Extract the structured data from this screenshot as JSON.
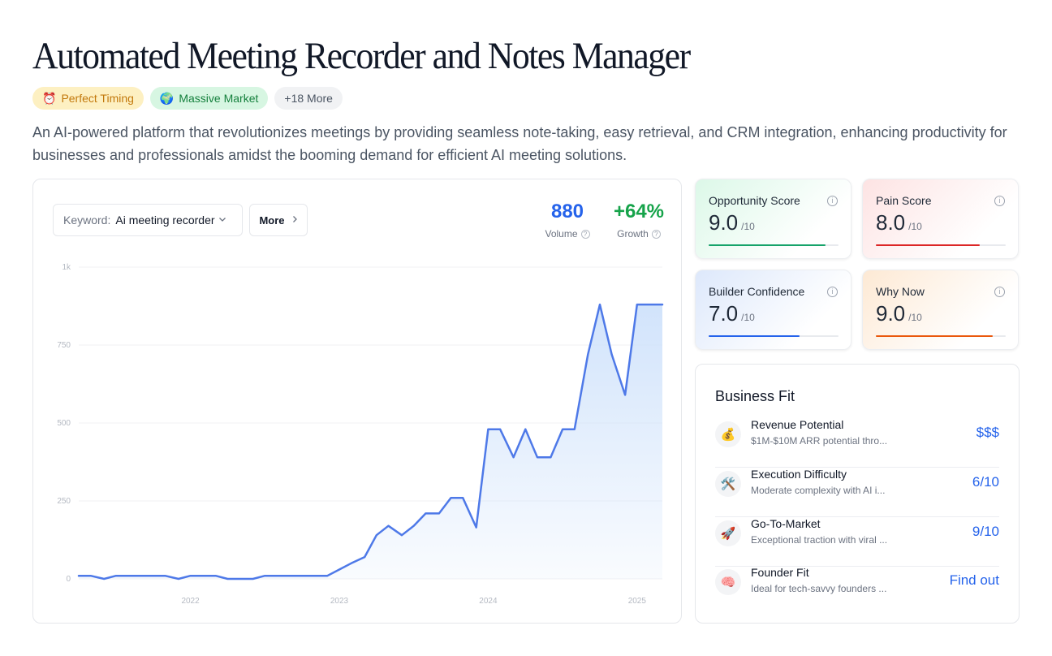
{
  "title": "Automated Meeting Recorder and Notes Manager",
  "badges": [
    {
      "icon": "⏰",
      "icon_name": "alarm-clock-icon",
      "label": "Perfect Timing"
    },
    {
      "icon": "🌍",
      "icon_name": "globe-icon",
      "label": "Massive Market"
    },
    {
      "label": "+18 More"
    }
  ],
  "description": "An AI-powered platform that revolutionizes meetings by providing seamless note-taking, easy retrieval, and CRM integration, enhancing productivity for businesses and professionals amidst the booming demand for efficient AI meeting solutions.",
  "keyword": {
    "label": "Keyword:",
    "value": "Ai meeting recorder"
  },
  "more_button": "More",
  "stats": {
    "volume": {
      "value": "880",
      "label": "Volume"
    },
    "growth": {
      "value": "+64%",
      "label": "Growth"
    }
  },
  "chart_data": {
    "type": "area",
    "title": "",
    "xlabel": "",
    "ylabel": "",
    "x_ticks": [
      "2022",
      "2023",
      "2024",
      "2025"
    ],
    "x_tick_positions": [
      2022,
      2023,
      2024,
      2025
    ],
    "y_ticks": [
      "0",
      "250",
      "500",
      "750",
      "1k"
    ],
    "y_tick_values": [
      0,
      250,
      500,
      750,
      1000
    ],
    "xlim": [
      2021.25,
      2025.17
    ],
    "ylim": [
      0,
      1000
    ],
    "grid": true,
    "color": "#4e79e8",
    "fill": "#cfe2fb",
    "x": [
      2021.25,
      2021.33,
      2021.42,
      2021.5,
      2021.58,
      2021.67,
      2021.75,
      2021.83,
      2021.92,
      2022.0,
      2022.08,
      2022.17,
      2022.25,
      2022.33,
      2022.42,
      2022.5,
      2022.58,
      2022.67,
      2022.75,
      2022.83,
      2022.92,
      2023.0,
      2023.08,
      2023.17,
      2023.25,
      2023.33,
      2023.42,
      2023.5,
      2023.58,
      2023.67,
      2023.75,
      2023.83,
      2023.92,
      2024.0,
      2024.08,
      2024.17,
      2024.25,
      2024.33,
      2024.42,
      2024.5,
      2024.58,
      2024.67,
      2024.75,
      2024.83,
      2024.92,
      2025.0,
      2025.08,
      2025.17
    ],
    "values": [
      10,
      10,
      0,
      10,
      10,
      10,
      10,
      10,
      0,
      10,
      10,
      10,
      0,
      0,
      0,
      10,
      10,
      10,
      10,
      10,
      10,
      30,
      50,
      70,
      140,
      170,
      140,
      170,
      210,
      210,
      260,
      260,
      165,
      480,
      480,
      390,
      480,
      390,
      390,
      480,
      480,
      720,
      880,
      720,
      590,
      880,
      880,
      880
    ]
  },
  "scores": {
    "opportunity": {
      "title": "Opportunity Score",
      "value": "9.0",
      "max": "/10",
      "level": 0.9,
      "color": "#16a36a"
    },
    "pain": {
      "title": "Pain Score",
      "value": "8.0",
      "max": "/10",
      "level": 0.8,
      "color": "#dc2626"
    },
    "builder": {
      "title": "Builder Confidence",
      "value": "7.0",
      "max": "/10",
      "level": 0.7,
      "color": "#2563eb"
    },
    "why_now": {
      "title": "Why Now",
      "value": "9.0",
      "max": "/10",
      "level": 0.9,
      "color": "#ea580c"
    }
  },
  "business_fit": {
    "title": "Business Fit",
    "items": [
      {
        "icon": "💰",
        "icon_name": "money-bag-icon",
        "name": "Revenue Potential",
        "desc": "$1M-$10M ARR potential thro...",
        "value": "$$$"
      },
      {
        "icon": "🛠️",
        "icon_name": "tools-icon",
        "name": "Execution Difficulty",
        "desc": "Moderate complexity with AI i...",
        "value": "6/10"
      },
      {
        "icon": "🚀",
        "icon_name": "rocket-icon",
        "name": "Go-To-Market",
        "desc": "Exceptional traction with viral ...",
        "value": "9/10"
      },
      {
        "icon": "🧠",
        "icon_name": "brain-icon",
        "name": "Founder Fit",
        "desc": "Ideal for tech-savvy founders ...",
        "value": "Find out"
      }
    ]
  }
}
